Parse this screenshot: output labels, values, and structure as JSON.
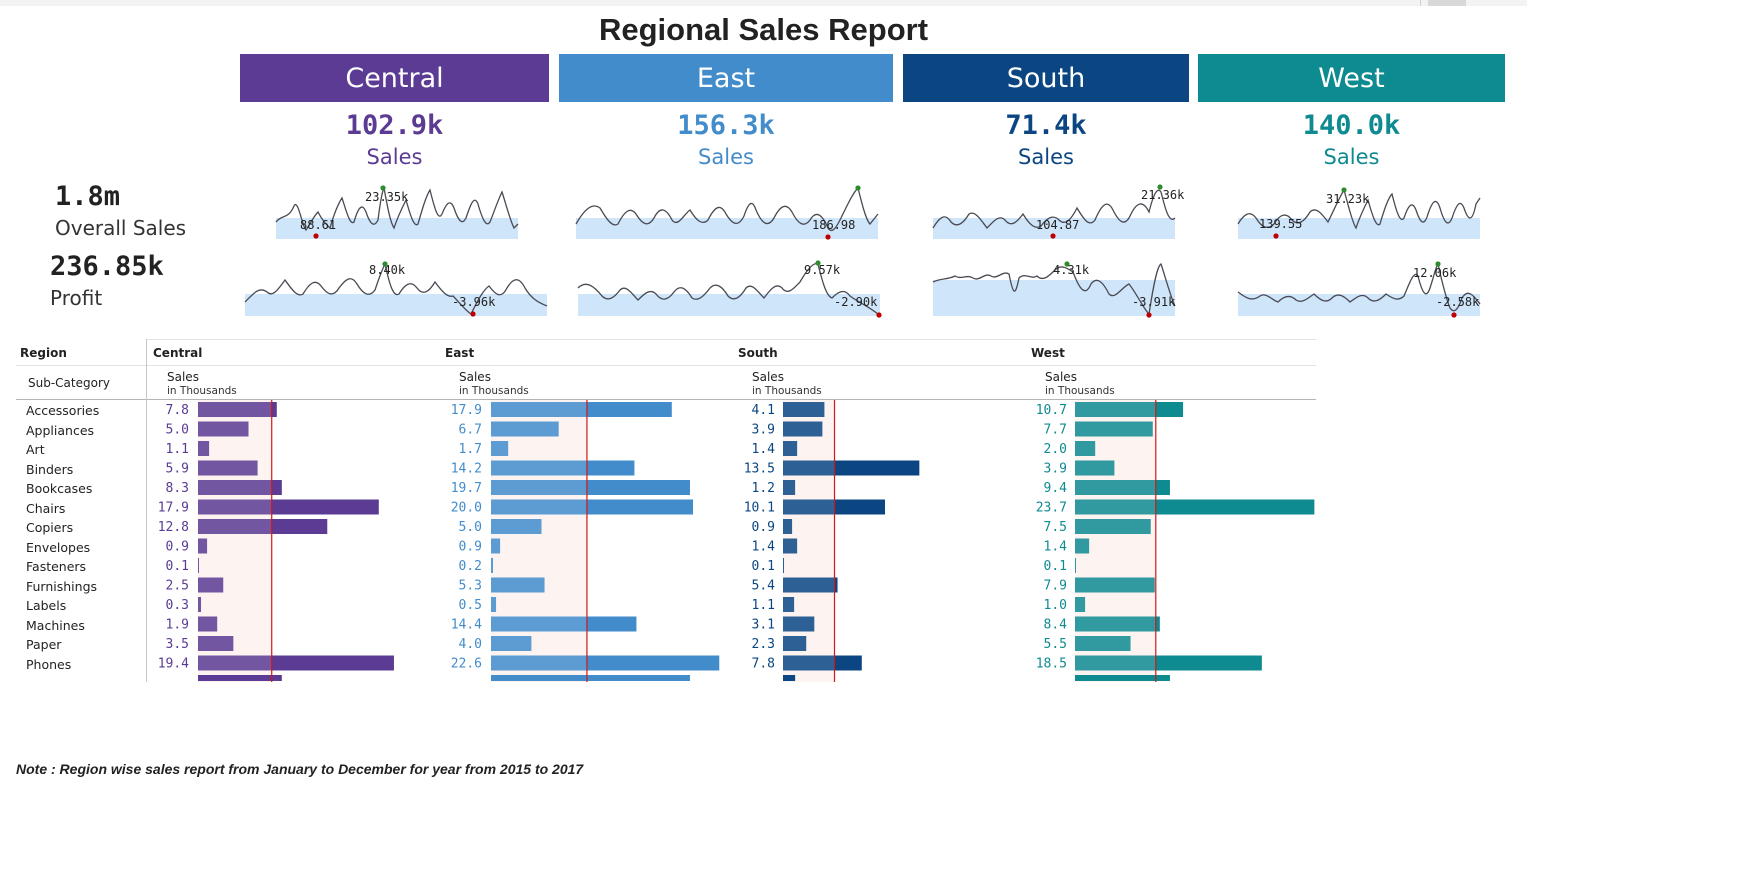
{
  "title": "Regional Sales Report",
  "overall": {
    "sales_value": "1.8m",
    "sales_label": "Overall Sales",
    "profit_value": "236.85k",
    "profit_label": "Profit"
  },
  "regions": [
    {
      "name": "Central",
      "color": "#5b3b93",
      "sales_kpi": "102.9k",
      "sales_label": "Sales"
    },
    {
      "name": "East",
      "color": "#438ccb",
      "sales_kpi": "156.3k",
      "sales_label": "Sales"
    },
    {
      "name": "South",
      "color": "#0b4683",
      "sales_kpi": "71.4k",
      "sales_label": "Sales"
    },
    {
      "name": "West",
      "color": "#0e8a91",
      "sales_kpi": "140.0k",
      "sales_label": "Sales"
    }
  ],
  "table": {
    "region_header": "Region",
    "subcat_header": "Sub-Category",
    "measure_label": "Sales",
    "measure_unit": "in Thousands",
    "subcategories": [
      "Accessories",
      "Appliances",
      "Art",
      "Binders",
      "Bookcases",
      "Chairs",
      "Copiers",
      "Envelopes",
      "Fasteners",
      "Furnishings",
      "Labels",
      "Machines",
      "Paper",
      "Phones"
    ]
  },
  "chart_data": [
    {
      "type": "bar",
      "title": "",
      "xlabel": "Sales in Thousands",
      "orientation": "horizontal",
      "categories": [
        "Accessories",
        "Appliances",
        "Art",
        "Binders",
        "Bookcases",
        "Chairs",
        "Copiers",
        "Envelopes",
        "Fasteners",
        "Furnishings",
        "Labels",
        "Machines",
        "Paper",
        "Phones"
      ],
      "series": [
        {
          "name": "Central",
          "values": [
            7.8,
            5.0,
            1.1,
            5.9,
            8.3,
            17.9,
            12.8,
            0.9,
            0.1,
            2.5,
            0.3,
            1.9,
            3.5,
            19.4
          ]
        },
        {
          "name": "East",
          "values": [
            17.9,
            6.7,
            1.7,
            14.2,
            19.7,
            20.0,
            5.0,
            0.9,
            0.2,
            5.3,
            0.5,
            14.4,
            4.0,
            22.6
          ]
        },
        {
          "name": "South",
          "values": [
            4.1,
            3.9,
            1.4,
            13.5,
            1.2,
            10.1,
            0.9,
            1.4,
            0.1,
            5.4,
            1.1,
            3.1,
            2.3,
            7.8
          ]
        },
        {
          "name": "West",
          "values": [
            10.7,
            7.7,
            2.0,
            3.9,
            9.4,
            23.7,
            7.5,
            1.4,
            0.1,
            7.9,
            1.0,
            8.4,
            5.5,
            18.5
          ]
        }
      ],
      "reference_line": {
        "Central": 7.3,
        "East": 9.5,
        "South": 5.1,
        "West": 8.0
      }
    },
    {
      "type": "line",
      "title": "",
      "metric": "Sales (sparkline, monthly)",
      "series": [
        {
          "name": "Central",
          "max_label": "23.35k",
          "min_label": "88.61"
        },
        {
          "name": "East",
          "max_label": "",
          "min_label": "186.98"
        },
        {
          "name": "South",
          "max_label": "21.36k",
          "min_label": "104.87"
        },
        {
          "name": "West",
          "max_label": "31.23k",
          "min_label": "139.55"
        }
      ]
    },
    {
      "type": "line",
      "title": "",
      "metric": "Profit (sparkline, monthly)",
      "series": [
        {
          "name": "Central",
          "max_label": "8.40k",
          "min_label": "-3.96k"
        },
        {
          "name": "East",
          "max_label": "9.57k",
          "min_label": "-2.90k"
        },
        {
          "name": "South",
          "max_label": "4.31k",
          "min_label": "-3.91k"
        },
        {
          "name": "West",
          "max_label": "12.06k",
          "min_label": "-2.58k"
        }
      ]
    }
  ],
  "note": "Note : Region wise sales report from January to December for year from 2015 to 2017"
}
